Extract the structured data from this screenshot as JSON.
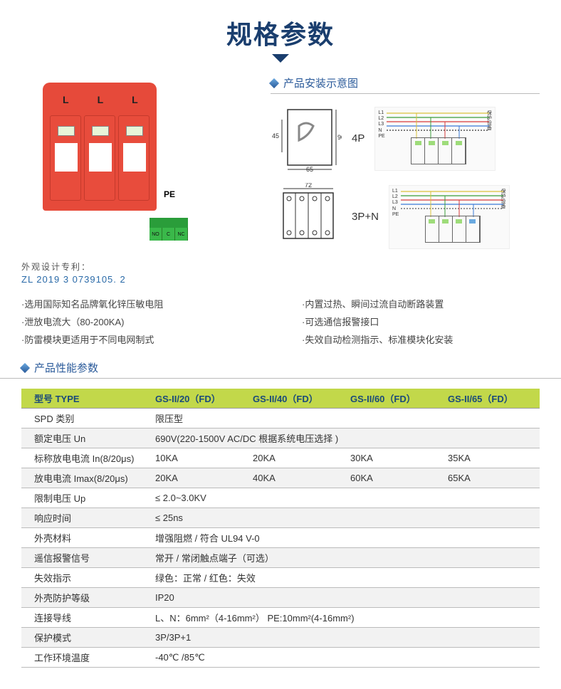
{
  "title": "规格参数",
  "patent": {
    "label": "外观设计专利：",
    "number": "ZL 2019 3 0739105. 2"
  },
  "install_diagram": {
    "title": "产品安装示意图",
    "row1_label": "4P",
    "row2_label": "3P+N",
    "dims_4p": {
      "w": "65",
      "h": "90",
      "side": "45"
    },
    "dims_3pn": {
      "w": "72"
    },
    "wiring_labels": "L1\nL2\nL3\nN\nPE",
    "wiring_right": "保护设备"
  },
  "features_left": [
    "·选用国际知名品牌氧化锌压敏电阻",
    "·泄放电流大（80-200KA)",
    "·防雷模块更适用于不同电网制式"
  ],
  "features_right": [
    "·内置过热、瞬间过流自动断路装置",
    "·可选通信报警接口",
    "·失效自动检测指示、标准模块化安装"
  ],
  "perf_title": "产品性能参数",
  "table": {
    "header": [
      "型号 TYPE",
      "GS-II/20（FD）",
      "GS-II/40（FD）",
      "GS-II/60（FD）",
      "GS-II/65（FD）"
    ],
    "rows": [
      {
        "label": "SPD 类别",
        "cells": [
          "限压型",
          "",
          "",
          ""
        ],
        "span": 4,
        "alt": false
      },
      {
        "label": "额定电压 Un",
        "cells": [
          "690V(220-1500V  AC/DC 根据系统电压选择 )",
          "",
          "",
          ""
        ],
        "span": 4,
        "alt": true
      },
      {
        "label": "标称放电电流 In(8/20μs)",
        "cells": [
          "10KA",
          "20KA",
          "30KA",
          "35KA"
        ],
        "span": 1,
        "alt": false
      },
      {
        "label": "放电电流 Imax(8/20μs)",
        "cells": [
          "20KA",
          "40KA",
          "60KA",
          "65KA"
        ],
        "span": 1,
        "alt": true
      },
      {
        "label": "限制电压 Up",
        "cells": [
          "≤ 2.0~3.0KV",
          "",
          "",
          ""
        ],
        "span": 4,
        "alt": false
      },
      {
        "label": "响应时间",
        "cells": [
          "≤ 25ns",
          "",
          "",
          ""
        ],
        "span": 4,
        "alt": true
      },
      {
        "label": "外壳材料",
        "cells": [
          "增强阻燃 / 符合 UL94 V-0",
          "",
          "",
          ""
        ],
        "span": 4,
        "alt": false
      },
      {
        "label": "遥信报警信号",
        "cells": [
          "常开 / 常闭触点端子（可选）",
          "",
          "",
          ""
        ],
        "span": 4,
        "alt": true
      },
      {
        "label": "失效指示",
        "cells": [
          "绿色：正常 / 红色：失效",
          "",
          "",
          ""
        ],
        "span": 4,
        "alt": false
      },
      {
        "label": "外壳防护等级",
        "cells": [
          "IP20",
          "",
          "",
          ""
        ],
        "span": 4,
        "alt": true
      },
      {
        "label": "连接导线",
        "cells": [
          "L、N：6mm²（4-16mm²）   PE:10mm²(4-16mm²)",
          "",
          "",
          ""
        ],
        "span": 4,
        "alt": false
      },
      {
        "label": "保护模式",
        "cells": [
          "3P/3P+1",
          "",
          "",
          ""
        ],
        "span": 4,
        "alt": true
      },
      {
        "label": "工作环境温度",
        "cells": [
          "-40℃ /85℃",
          "",
          "",
          ""
        ],
        "span": 4,
        "alt": false
      }
    ]
  },
  "colors": {
    "title": "#1a3e6e",
    "accent": "#2a5a9a",
    "header_bg": "#c2d84a",
    "device": "#e64a3a"
  }
}
